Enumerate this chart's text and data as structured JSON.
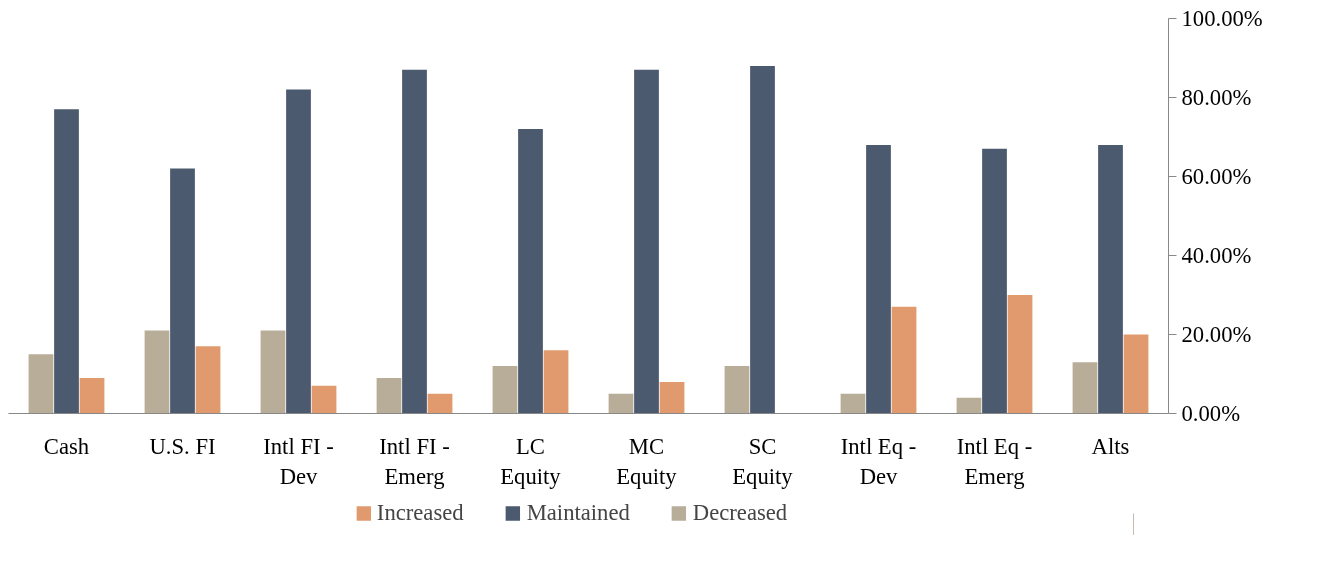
{
  "chart_data": {
    "type": "bar",
    "categories": [
      "Cash",
      "U.S. FI",
      "Intl FI - Dev",
      "Intl FI - Emerg",
      "LC Equity",
      "MC Equity",
      "SC Equity",
      "Intl Eq - Dev",
      "Intl Eq - Emerg",
      "Alts"
    ],
    "series": [
      {
        "name": "Decreased",
        "color": "#b8ad98",
        "values": [
          15,
          21,
          21,
          9,
          12,
          5,
          12,
          5,
          4,
          13
        ]
      },
      {
        "name": "Maintained",
        "color": "#4b5a6e",
        "values": [
          77,
          62,
          82,
          87,
          72,
          87,
          88,
          68,
          67,
          68
        ]
      },
      {
        "name": "Increased",
        "color": "#e09a6e",
        "values": [
          9,
          17,
          7,
          5,
          16,
          8,
          0,
          27,
          30,
          20
        ]
      }
    ],
    "ylim": [
      0,
      100
    ],
    "yticks": [
      {
        "value": 0,
        "label": "0.00%"
      },
      {
        "value": 20,
        "label": "20.00%"
      },
      {
        "value": 40,
        "label": "40.00%"
      },
      {
        "value": 60,
        "label": "60.00%"
      },
      {
        "value": 80,
        "label": "80.00%"
      },
      {
        "value": 100,
        "label": "100.00%"
      }
    ],
    "grid": false,
    "legend": "bottom"
  }
}
